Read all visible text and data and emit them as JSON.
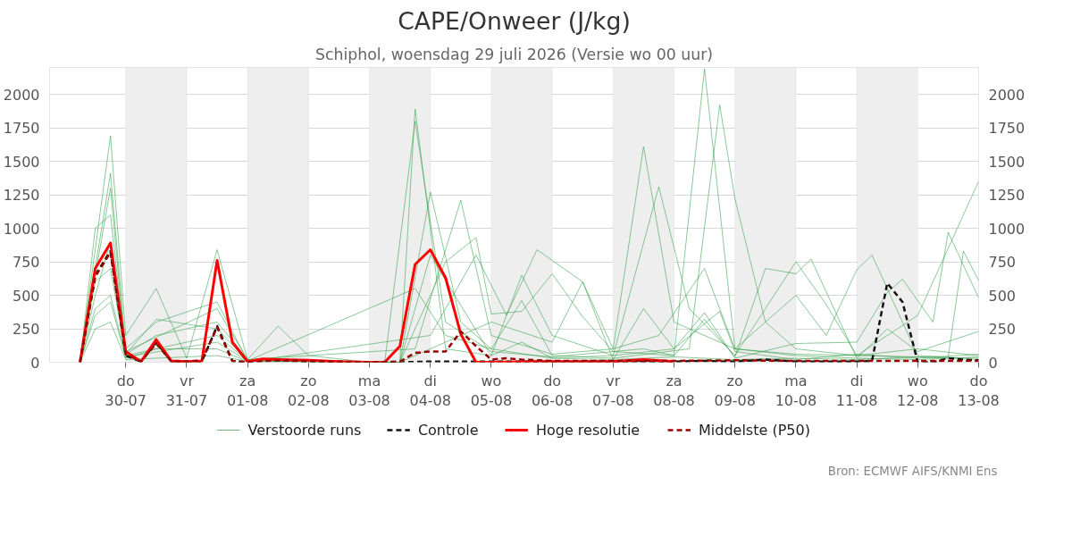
{
  "chart_data": {
    "type": "line",
    "title": "CAPE/Onweer (J/kg)",
    "subtitle": "Schiphol, woensdag 29 juli 2026 (Versie wo 00 uur)",
    "annotations": [
      "Bron: ECMWF AIFS/KNMI Ens"
    ],
    "xlim": [
      "2026-07-28T18:00",
      "2026-08-13T00:00"
    ],
    "xticks": [
      {
        "value": "2026-07-30",
        "label": "do\n30-07"
      },
      {
        "value": "2026-07-31",
        "label": "vr\n31-07"
      },
      {
        "value": "2026-08-01",
        "label": "za\n01-08"
      },
      {
        "value": "2026-08-02",
        "label": "zo\n02-08"
      },
      {
        "value": "2026-08-03",
        "label": "ma\n03-08"
      },
      {
        "value": "2026-08-04",
        "label": "di\n04-08"
      },
      {
        "value": "2026-08-05",
        "label": "wo\n05-08"
      },
      {
        "value": "2026-08-06",
        "label": "do\n06-08"
      },
      {
        "value": "2026-08-07",
        "label": "vr\n07-08"
      },
      {
        "value": "2026-08-08",
        "label": "za\n08-08"
      },
      {
        "value": "2026-08-09",
        "label": "zo\n09-08"
      },
      {
        "value": "2026-08-10",
        "label": "ma\n10-08"
      },
      {
        "value": "2026-08-11",
        "label": "di\n11-08"
      },
      {
        "value": "2026-08-12",
        "label": "wo\n12-08"
      },
      {
        "value": "2026-08-13",
        "label": "do\n13-08"
      }
    ],
    "ylim": [
      0,
      2200
    ],
    "yticks": [
      0,
      250,
      500,
      750,
      1000,
      1250,
      1500,
      1750,
      2000
    ],
    "y2lim": [
      0,
      2200
    ],
    "y2ticks": [
      0,
      250,
      500,
      750,
      1000,
      1250,
      1500,
      1750,
      2000
    ],
    "grid": "y",
    "legend": "bottom",
    "bands": [
      {
        "axis": "x",
        "from": "2026-07-30",
        "to": "2026-07-31",
        "color": "#eeeeee"
      },
      {
        "axis": "x",
        "from": "2026-08-01",
        "to": "2026-08-02",
        "color": "#eeeeee"
      },
      {
        "axis": "x",
        "from": "2026-08-03",
        "to": "2026-08-04",
        "color": "#eeeeee"
      },
      {
        "axis": "x",
        "from": "2026-08-05",
        "to": "2026-08-06",
        "color": "#eeeeee"
      },
      {
        "axis": "x",
        "from": "2026-08-07",
        "to": "2026-08-08",
        "color": "#eeeeee"
      },
      {
        "axis": "x",
        "from": "2026-08-09",
        "to": "2026-08-10",
        "color": "#eeeeee"
      },
      {
        "axis": "x",
        "from": "2026-08-11",
        "to": "2026-08-12",
        "color": "#eeeeee"
      }
    ],
    "series": [
      {
        "name": "Verstoorde runs",
        "color": "#2e9e44",
        "line_style": "solid",
        "x": [
          "2026-07-29T06:00",
          "2026-07-29T18:00",
          "2026-07-30T00:00",
          "2026-07-30T12:00",
          "2026-07-31T00:00",
          "2026-07-31T12:00",
          "2026-08-01T00:00",
          "2026-08-01T12:00",
          "2026-08-02T00:00",
          "2026-08-03T00:00",
          "2026-08-03T12:00",
          "2026-08-03T18:00",
          "2026-08-04T06:00",
          "2026-08-05T00:00",
          "2026-08-05T12:00",
          "2026-08-06T00:00",
          "2026-08-07T00:00",
          "2026-08-08T00:00",
          "2026-08-09T00:00",
          "2026-08-10T00:00",
          "2026-08-11T00:00",
          "2026-08-12T00:00",
          "2026-08-13T00:00"
        ],
        "values": [
          0,
          1690,
          200,
          550,
          30,
          840,
          20,
          270,
          50,
          0,
          0,
          1890,
          100,
          50,
          150,
          30,
          20,
          40,
          20,
          30,
          20,
          40,
          30
        ]
      },
      {
        "color": "#2e9e44",
        "line_style": "solid",
        "x": [
          "2026-07-29T06:00",
          "2026-07-29T18:00",
          "2026-07-30T00:00",
          "2026-07-30T12:00",
          "2026-07-31T12:00",
          "2026-08-01T00:00",
          "2026-08-03T06:00",
          "2026-08-03T18:00",
          "2026-08-04T06:00",
          "2026-08-05T00:00",
          "2026-08-06T00:00",
          "2026-08-07T12:00",
          "2026-08-08T00:00",
          "2026-08-08T12:00",
          "2026-08-09T00:00",
          "2026-08-10T00:00",
          "2026-08-11T00:00",
          "2026-08-12T00:00",
          "2026-08-13T00:00"
        ],
        "values": [
          0,
          1410,
          100,
          300,
          450,
          10,
          0,
          1800,
          300,
          80,
          40,
          100,
          50,
          2190,
          100,
          60,
          50,
          40,
          20
        ]
      },
      {
        "color": "#2e9e44",
        "line_style": "solid",
        "x": [
          "2026-07-29T06:00",
          "2026-07-29T18:00",
          "2026-07-30T00:00",
          "2026-07-30T12:00",
          "2026-07-31T12:00",
          "2026-08-01T00:00",
          "2026-08-03T12:00",
          "2026-08-04T00:00",
          "2026-08-04T12:00",
          "2026-08-05T00:00",
          "2026-08-05T12:00",
          "2026-08-06T00:00",
          "2026-08-07T00:00",
          "2026-08-08T06:00",
          "2026-08-08T18:00",
          "2026-08-09T00:00",
          "2026-08-09T12:00",
          "2026-08-10T00:00",
          "2026-08-11T00:00",
          "2026-08-12T00:00",
          "2026-08-13T00:00"
        ],
        "values": [
          0,
          1300,
          60,
          200,
          300,
          20,
          0,
          1270,
          300,
          100,
          460,
          50,
          30,
          100,
          1920,
          1220,
          300,
          100,
          50,
          100,
          50
        ]
      },
      {
        "color": "#2e9e44",
        "line_style": "solid",
        "x": [
          "2026-07-29T06:00",
          "2026-07-29T12:00",
          "2026-07-29T18:00",
          "2026-07-30T00:00",
          "2026-07-31T12:00",
          "2026-08-01T00:00",
          "2026-08-03T18:00",
          "2026-08-04T12:00",
          "2026-08-05T00:00",
          "2026-08-06T00:00",
          "2026-08-07T00:00",
          "2026-08-07T12:00",
          "2026-08-08T00:00",
          "2026-08-09T00:00",
          "2026-08-10T00:00",
          "2026-08-11T00:00",
          "2026-08-12T00:00",
          "2026-08-13T00:00"
        ],
        "values": [
          0,
          1000,
          1100,
          80,
          400,
          20,
          100,
          1210,
          200,
          60,
          100,
          1610,
          300,
          100,
          50,
          30,
          20,
          40
        ]
      },
      {
        "color": "#2e9e44",
        "line_style": "solid",
        "x": [
          "2026-07-29T06:00",
          "2026-07-29T12:00",
          "2026-07-29T18:00",
          "2026-07-30T00:00",
          "2026-07-31T12:00",
          "2026-08-01T00:00",
          "2026-08-03T12:00",
          "2026-08-04T00:00",
          "2026-08-05T00:00",
          "2026-08-05T12:00",
          "2026-08-06T00:00",
          "2026-08-07T00:00",
          "2026-08-07T18:00",
          "2026-08-08T06:00",
          "2026-08-09T00:00",
          "2026-08-09T12:00",
          "2026-08-10T00:00",
          "2026-08-10T12:00",
          "2026-08-11T00:00",
          "2026-08-12T00:00",
          "2026-08-13T00:00"
        ],
        "values": [
          0,
          600,
          700,
          50,
          200,
          10,
          0,
          800,
          50,
          650,
          200,
          50,
          1310,
          400,
          50,
          400,
          750,
          430,
          50,
          350,
          1350
        ]
      },
      {
        "color": "#2e9e44",
        "line_style": "solid",
        "x": [
          "2026-07-29T06:00",
          "2026-07-29T12:00",
          "2026-07-29T18:00",
          "2026-07-30T00:00",
          "2026-07-31T12:00",
          "2026-08-01T00:00",
          "2026-08-03T12:00",
          "2026-08-04T06:00",
          "2026-08-04T18:00",
          "2026-08-05T00:00",
          "2026-08-05T12:00",
          "2026-08-06T00:00",
          "2026-08-06T12:00",
          "2026-08-07T00:00",
          "2026-08-08T00:00",
          "2026-08-08T12:00",
          "2026-08-09T00:00",
          "2026-08-09T12:00",
          "2026-08-10T00:00",
          "2026-08-10T06:00",
          "2026-08-11T00:00",
          "2026-08-11T12:00",
          "2026-08-12T00:00",
          "2026-08-13T00:00"
        ],
        "values": [
          0,
          400,
          500,
          40,
          150,
          10,
          0,
          750,
          930,
          360,
          380,
          660,
          340,
          80,
          50,
          320,
          40,
          700,
          660,
          770,
          30,
          250,
          80,
          230
        ]
      },
      {
        "color": "#2e9e44",
        "line_style": "solid",
        "x": [
          "2026-07-29T06:00",
          "2026-07-29T12:00",
          "2026-07-29T18:00",
          "2026-07-30T00:00",
          "2026-07-30T12:00",
          "2026-07-31T12:00",
          "2026-08-01T00:00",
          "2026-08-04T00:00",
          "2026-08-04T18:00",
          "2026-08-05T06:00",
          "2026-08-05T18:00",
          "2026-08-06T12:00",
          "2026-08-07T00:00",
          "2026-08-07T18:00",
          "2026-08-08T12:00",
          "2026-08-09T00:00",
          "2026-08-10T00:00",
          "2026-08-10T12:00",
          "2026-08-11T00:00",
          "2026-08-11T06:00",
          "2026-08-12T00:00",
          "2026-08-12T12:00",
          "2026-08-12T18:00",
          "2026-08-13T00:00"
        ],
        "values": [
          0,
          350,
          450,
          30,
          100,
          100,
          5,
          200,
          800,
          350,
          840,
          600,
          100,
          200,
          700,
          100,
          500,
          200,
          690,
          800,
          50,
          40,
          830,
          610
        ]
      },
      {
        "color": "#2e9e44",
        "line_style": "solid",
        "x": [
          "2026-07-29T06:00",
          "2026-07-29T12:00",
          "2026-07-29T18:00",
          "2026-07-30T00:00",
          "2026-07-31T12:00",
          "2026-08-01T00:00",
          "2026-08-03T12:00",
          "2026-08-04T00:00",
          "2026-08-05T00:00",
          "2026-08-06T00:00",
          "2026-08-06T12:00",
          "2026-08-07T00:00",
          "2026-08-07T12:00",
          "2026-08-08T00:00",
          "2026-08-08T12:00",
          "2026-08-09T00:00",
          "2026-08-10T00:00",
          "2026-08-11T00:00",
          "2026-08-11T12:00",
          "2026-08-11T18:00",
          "2026-08-12T06:00",
          "2026-08-12T12:00",
          "2026-08-13T00:00"
        ],
        "values": [
          0,
          250,
          300,
          20,
          50,
          5,
          0,
          100,
          300,
          150,
          600,
          20,
          400,
          100,
          370,
          30,
          140,
          150,
          520,
          620,
          300,
          970,
          480
        ]
      },
      {
        "color": "#2e9e44",
        "line_style": "solid",
        "x": [
          "2026-07-29T06:00",
          "2026-07-29T12:00",
          "2026-07-29T18:00",
          "2026-07-30T00:00",
          "2026-07-30T12:00",
          "2026-07-31T12:00",
          "2026-08-01T00:00",
          "2026-08-03T18:00",
          "2026-08-04T06:00",
          "2026-08-05T00:00",
          "2026-08-06T00:00",
          "2026-08-07T00:00",
          "2026-08-08T00:00",
          "2026-08-08T18:00",
          "2026-08-09T00:00",
          "2026-08-10T00:00",
          "2026-08-11T00:00",
          "2026-08-12T00:00",
          "2026-08-13T00:00"
        ],
        "values": [
          0,
          500,
          900,
          60,
          320,
          250,
          10,
          550,
          200,
          100,
          30,
          50,
          100,
          380,
          80,
          20,
          60,
          30,
          60
        ]
      },
      {
        "name": "Controle",
        "color": "#111111",
        "line_style": "dashed",
        "x": [
          "2026-07-29T06:00",
          "2026-07-29T12:00",
          "2026-07-29T18:00",
          "2026-07-30T00:00",
          "2026-07-30T06:00",
          "2026-07-30T12:00",
          "2026-07-30T18:00",
          "2026-07-31T00:00",
          "2026-07-31T06:00",
          "2026-07-31T12:00",
          "2026-07-31T18:00",
          "2026-08-01T00:00",
          "2026-08-01T06:00",
          "2026-08-01T12:00",
          "2026-08-02T00:00",
          "2026-08-03T00:00",
          "2026-08-03T12:00",
          "2026-08-04T00:00",
          "2026-08-05T00:00",
          "2026-08-07T00:00",
          "2026-08-08T00:00",
          "2026-08-08T12:00",
          "2026-08-09T00:00",
          "2026-08-09T12:00",
          "2026-08-10T00:00",
          "2026-08-11T00:00",
          "2026-08-11T06:00",
          "2026-08-11T12:00",
          "2026-08-11T18:00",
          "2026-08-12T00:00",
          "2026-08-12T06:00",
          "2026-08-12T12:00",
          "2026-08-12T18:00",
          "2026-08-13T00:00"
        ],
        "values": [
          0,
          650,
          830,
          50,
          5,
          150,
          5,
          5,
          5,
          270,
          10,
          0,
          20,
          15,
          5,
          0,
          0,
          5,
          5,
          5,
          5,
          10,
          5,
          20,
          5,
          5,
          10,
          590,
          450,
          0,
          0,
          30,
          20,
          15
        ]
      },
      {
        "name": "Hoge resolutie",
        "color": "#ff0000",
        "line_style": "solid",
        "x": [
          "2026-07-29T06:00",
          "2026-07-29T12:00",
          "2026-07-29T18:00",
          "2026-07-30T00:00",
          "2026-07-30T06:00",
          "2026-07-30T12:00",
          "2026-07-30T18:00",
          "2026-07-31T00:00",
          "2026-07-31T06:00",
          "2026-07-31T12:00",
          "2026-07-31T18:00",
          "2026-08-01T00:00",
          "2026-08-01T06:00",
          "2026-08-01T12:00",
          "2026-08-02T00:00",
          "2026-08-02T12:00",
          "2026-08-03T00:00",
          "2026-08-03T06:00",
          "2026-08-03T12:00",
          "2026-08-03T18:00",
          "2026-08-04T00:00",
          "2026-08-04T06:00",
          "2026-08-04T12:00",
          "2026-08-04T18:00",
          "2026-08-05T00:00",
          "2026-08-06T00:00",
          "2026-08-07T00:00",
          "2026-08-07T12:00",
          "2026-08-08T00:00"
        ],
        "values": [
          0,
          700,
          890,
          80,
          5,
          170,
          10,
          5,
          10,
          760,
          150,
          5,
          25,
          20,
          15,
          5,
          0,
          0,
          120,
          730,
          840,
          630,
          210,
          0,
          0,
          5,
          5,
          20,
          5
        ]
      },
      {
        "name": "Middelste (P50)",
        "color": "#990000",
        "line_style": "dashed",
        "x": [
          "2026-07-29T06:00",
          "2026-07-29T12:00",
          "2026-07-29T18:00",
          "2026-07-30T00:00",
          "2026-07-30T06:00",
          "2026-07-30T12:00",
          "2026-07-30T18:00",
          "2026-07-31T00:00",
          "2026-07-31T06:00",
          "2026-07-31T12:00",
          "2026-07-31T18:00",
          "2026-08-01T00:00",
          "2026-08-01T12:00",
          "2026-08-02T00:00",
          "2026-08-03T00:00",
          "2026-08-03T12:00",
          "2026-08-03T18:00",
          "2026-08-04T00:00",
          "2026-08-04T06:00",
          "2026-08-04T12:00",
          "2026-08-04T18:00",
          "2026-08-05T00:00",
          "2026-08-05T06:00",
          "2026-08-05T12:00",
          "2026-08-06T00:00",
          "2026-08-07T00:00",
          "2026-08-08T00:00",
          "2026-08-09T00:00",
          "2026-08-10T00:00",
          "2026-08-11T00:00",
          "2026-08-12T00:00",
          "2026-08-13T00:00"
        ],
        "values": [
          0,
          640,
          820,
          60,
          5,
          140,
          5,
          5,
          15,
          260,
          10,
          0,
          15,
          10,
          0,
          5,
          70,
          80,
          80,
          230,
          120,
          20,
          30,
          20,
          10,
          10,
          10,
          15,
          10,
          10,
          10,
          10
        ]
      }
    ]
  }
}
